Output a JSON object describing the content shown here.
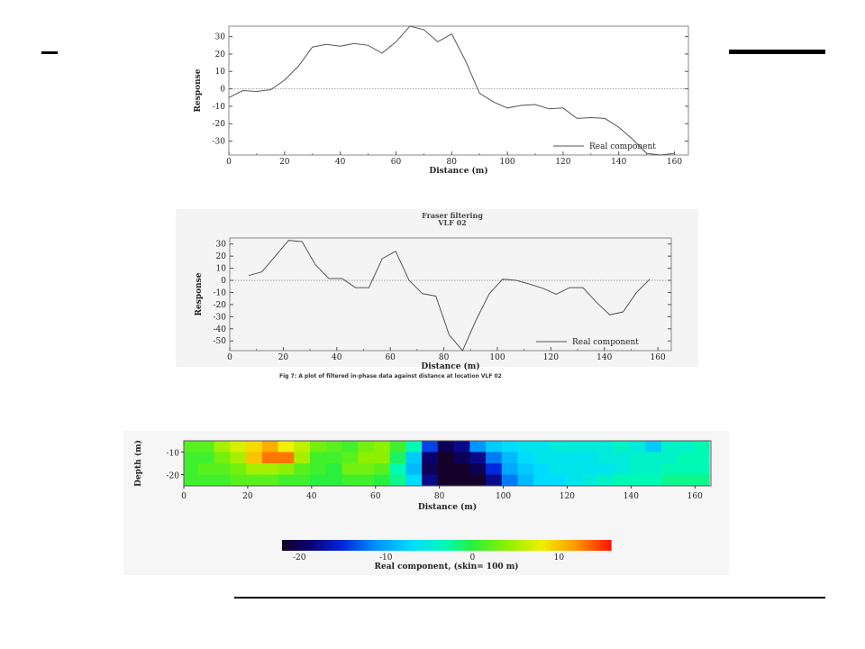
{
  "colors": {
    "line": "#555555",
    "frame": "#888888",
    "zero": "#999999",
    "bars": "#000000"
  },
  "chart_data": [
    {
      "type": "line",
      "title": "",
      "xlabel": "Distance (m)",
      "ylabel": "Response",
      "xlim": [
        0,
        165
      ],
      "ylim": [
        -38,
        36
      ],
      "xticks": [
        0,
        20,
        40,
        60,
        80,
        100,
        120,
        140,
        160
      ],
      "yticks": [
        -30,
        -20,
        -10,
        0,
        10,
        20,
        30
      ],
      "legend": "bottom-right",
      "series": [
        {
          "name": "Real component",
          "x": [
            0,
            5,
            10,
            15,
            20,
            25,
            30,
            35,
            40,
            45,
            50,
            55,
            60,
            65,
            70,
            75,
            80,
            85,
            90,
            95,
            100,
            105,
            110,
            115,
            120,
            125,
            130,
            135,
            140,
            145,
            150,
            155,
            160
          ],
          "y": [
            -5,
            -1,
            -1.5,
            -0.5,
            5,
            13,
            24,
            25.5,
            24.5,
            26,
            25,
            20.5,
            27,
            36,
            34,
            27,
            31.5,
            16,
            -2.5,
            -7.5,
            -11,
            -9.5,
            -9,
            -11.5,
            -11,
            -17,
            -16.5,
            -17,
            -22,
            -29,
            -37,
            -38,
            -37
          ]
        }
      ]
    },
    {
      "type": "line",
      "title": "Fraser filtering",
      "subtitle": "VLF  02",
      "xlabel": "Distance (m)",
      "ylabel": "Response",
      "xlim": [
        0,
        165
      ],
      "ylim": [
        -58,
        35
      ],
      "xticks": [
        0,
        20,
        40,
        60,
        80,
        100,
        120,
        140,
        160
      ],
      "yticks": [
        -50,
        -40,
        -30,
        -20,
        -10,
        0,
        10,
        20,
        30
      ],
      "legend": "bottom-right",
      "caption": "Fig 7: A plot of filtered in-phase data against distance at location VLF 02",
      "series": [
        {
          "name": "Real component",
          "x": [
            7,
            12,
            17,
            22,
            27,
            32,
            37,
            42,
            47,
            52,
            57,
            62,
            67,
            72,
            77,
            82,
            87,
            92,
            97,
            102,
            107,
            112,
            117,
            122,
            127,
            132,
            137,
            142,
            147,
            152,
            157
          ],
          "y": [
            4,
            7,
            20,
            33,
            32,
            13,
            1.5,
            1.5,
            -6,
            -6,
            18,
            24,
            0,
            -11,
            -13,
            -45,
            -58,
            -33,
            -11,
            1,
            0,
            -3,
            -6.5,
            -11.5,
            -6,
            -6,
            -18,
            -28.5,
            -26,
            -10,
            1
          ]
        }
      ]
    },
    {
      "type": "heatmap",
      "title": "",
      "xlabel": "Distance (m)",
      "ylabel": "Depth (m)",
      "xlim": [
        0,
        165
      ],
      "ylim": [
        -25,
        -5
      ],
      "xticks": [
        0,
        20,
        40,
        60,
        80,
        100,
        120,
        140,
        160
      ],
      "yticks": [
        -10,
        -20
      ],
      "colorbar_label": "Real component, (skin= 100 m)",
      "colorbar_ticks": [
        -20,
        -10,
        0,
        10
      ],
      "colorbar_range": [
        -22,
        16
      ],
      "x": [
        2,
        7,
        12,
        17,
        22,
        27,
        32,
        37,
        42,
        47,
        52,
        57,
        62,
        67,
        72,
        77,
        82,
        87,
        92,
        97,
        102,
        107,
        112,
        117,
        122,
        127,
        132,
        137,
        142,
        147,
        152,
        157,
        162
      ],
      "depths": [
        -6,
        -12,
        -18,
        -24
      ],
      "values": [
        [
          2,
          2,
          5,
          7,
          9,
          11,
          8,
          6,
          3,
          2,
          1,
          3,
          4,
          1,
          -3,
          -14,
          -20,
          -18,
          -11,
          -8,
          -7,
          -6,
          -6,
          -5,
          -5,
          -5,
          -5,
          -4,
          -5,
          -8,
          -4,
          -4,
          -3
        ],
        [
          1,
          1,
          3,
          5,
          10,
          13,
          13,
          5,
          1,
          1,
          2,
          4,
          4,
          -1,
          -8,
          -19,
          -22,
          -20,
          -18,
          -12,
          -9,
          -7,
          -6,
          -6,
          -6,
          -6,
          -5,
          -5,
          -4,
          -4,
          -4,
          -3,
          -3
        ],
        [
          1,
          2,
          2,
          3,
          5,
          5,
          4,
          2,
          1,
          0,
          3,
          3,
          2,
          -3,
          -9,
          -20,
          -24,
          -23,
          -20,
          -15,
          -10,
          -8,
          -7,
          -6,
          -6,
          -6,
          -6,
          -5,
          -4,
          -4,
          -3,
          -3,
          -3
        ],
        [
          1,
          1,
          1,
          2,
          2,
          2,
          1,
          1,
          0,
          0,
          1,
          1,
          0,
          -2,
          -7,
          -18,
          -24,
          -24,
          -23,
          -18,
          -12,
          -9,
          -7,
          -7,
          -6,
          -5,
          -4,
          -3,
          -3,
          -3,
          -2,
          -2,
          -2
        ]
      ]
    }
  ]
}
